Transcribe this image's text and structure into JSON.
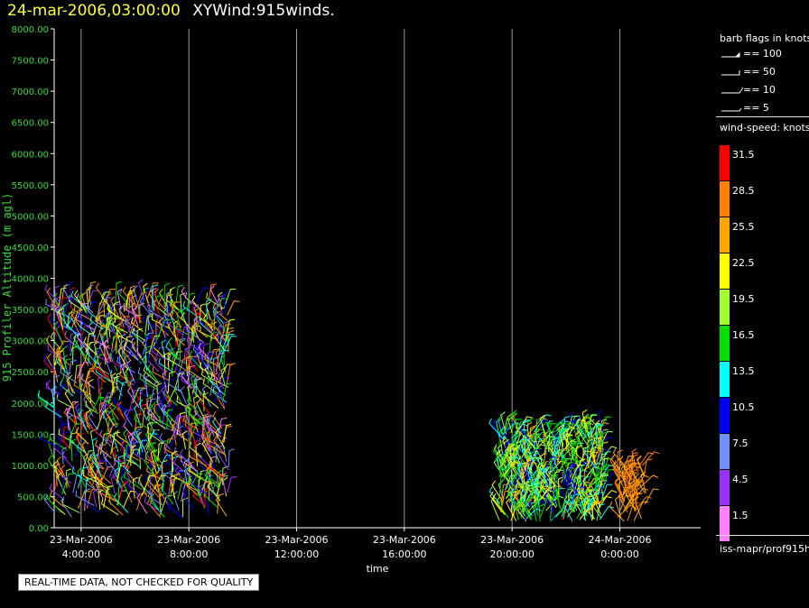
{
  "header": {
    "timestamp": "24-mar-2006,03:00:00",
    "title": "XYWind:915winds."
  },
  "quality_notice": "REAL-TIME DATA, NOT CHECKED FOR QUALITY",
  "legend": {
    "flags_title": "barb flags in knots",
    "flags": [
      "== 100",
      "== 50",
      "== 10",
      "== 5"
    ],
    "speed_title": "wind-speed: knots",
    "speed_levels": [
      {
        "label": "31.5",
        "color": "#ff0000"
      },
      {
        "label": "28.5",
        "color": "#ff7f00"
      },
      {
        "label": "25.5",
        "color": "#ffa500"
      },
      {
        "label": "22.5",
        "color": "#ffff00"
      },
      {
        "label": "19.5",
        "color": "#a0ff30"
      },
      {
        "label": "16.5",
        "color": "#00e000"
      },
      {
        "label": "13.5",
        "color": "#00ffff"
      },
      {
        "label": "10.5",
        "color": "#0000ff"
      },
      {
        "label": "7.5",
        "color": "#6f8fff"
      },
      {
        "label": "4.5",
        "color": "#9b30ff"
      },
      {
        "label": "1.5",
        "color": "#ff80ff"
      }
    ],
    "source": "iss-mapr/prof915h"
  },
  "chart_data": {
    "type": "scatter",
    "title": "XYWind:915winds.",
    "xlabel": "time",
    "ylabel": "915 Profiler Altitude (m agl)",
    "ylim": [
      0,
      8000
    ],
    "yticks": [
      "0.00",
      "500.00",
      "1000.00",
      "1500.00",
      "2000.00",
      "2500.00",
      "3000.00",
      "3500.00",
      "4000.00",
      "4500.00",
      "5000.00",
      "5500.00",
      "6000.00",
      "6500.00",
      "7000.00",
      "7500.00",
      "8000.00"
    ],
    "xticks": [
      {
        "date": "23-Mar-2006",
        "time": "4:00:00"
      },
      {
        "date": "23-Mar-2006",
        "time": "8:00:00"
      },
      {
        "date": "23-Mar-2006",
        "time": "12:00:00"
      },
      {
        "date": "23-Mar-2006",
        "time": "16:00:00"
      },
      {
        "date": "23-Mar-2006",
        "time": "20:00:00"
      },
      {
        "date": "24-Mar-2006",
        "time": "0:00:00"
      }
    ],
    "xlim_hours": [
      3.0,
      27.0
    ],
    "grid_vertical": true,
    "legend_position": "right",
    "series": [
      {
        "time_range_hours": [
          3.0,
          9.5
        ],
        "altitude_range_m": [
          150,
          3650
        ],
        "speed_range_knots": [
          1.5,
          31.5
        ]
      },
      {
        "time_range_hours": [
          19.5,
          23.4
        ],
        "altitude_range_m": [
          100,
          1550
        ],
        "speed_range_knots": [
          10.5,
          25.5
        ]
      },
      {
        "time_range_hours": [
          23.9,
          25.0
        ],
        "altitude_range_m": [
          100,
          1000
        ],
        "speed_range_knots": [
          25.5,
          28.5
        ]
      }
    ]
  }
}
